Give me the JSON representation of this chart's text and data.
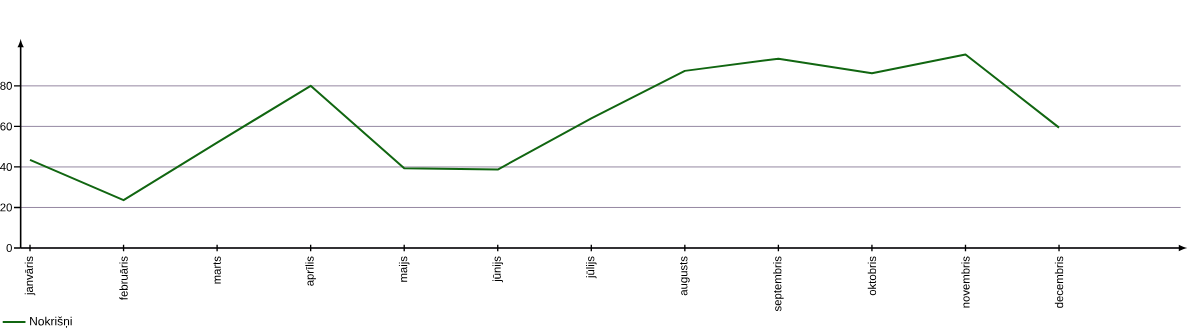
{
  "chart_data": {
    "type": "line",
    "categories": [
      "janvāris",
      "februāris",
      "marts",
      "aprīlis",
      "maijs",
      "jūnijs",
      "jūlijs",
      "augusts",
      "septembris",
      "oktobris",
      "novembris",
      "decembris"
    ],
    "series": [
      {
        "name": "Nokrišņi",
        "color": "#116611",
        "values": [
          43.5,
          23.6,
          52,
          80,
          39.3,
          38.7,
          64,
          87.4,
          93.4,
          86.2,
          95.5,
          59.4
        ]
      }
    ],
    "ylim": [
      0,
      100
    ],
    "yticks": [
      0,
      20,
      40,
      60,
      80
    ],
    "grid": "y",
    "legend": "bottom left",
    "marker": "none",
    "line_style": "solid"
  }
}
